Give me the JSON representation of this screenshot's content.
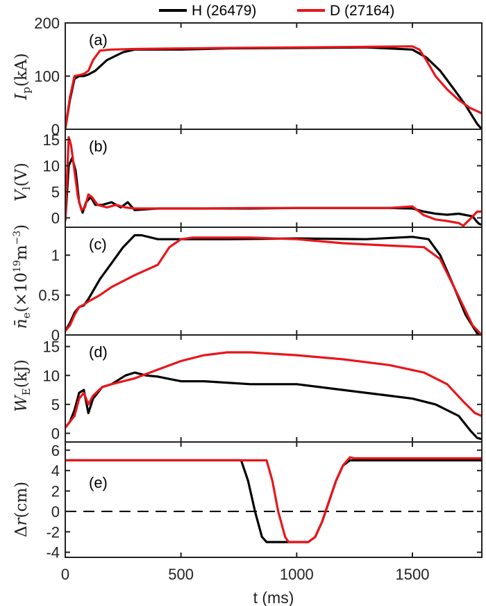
{
  "figure": {
    "xlabel": "t (ms)",
    "xlim": [
      0,
      1800
    ],
    "xticks": [
      0,
      500,
      1000,
      1500
    ]
  },
  "legend": [
    {
      "label": "H (26479)",
      "color": "#000000"
    },
    {
      "label": "D (27164)",
      "color": "#e8161b"
    }
  ],
  "chart_data": [
    {
      "type": "line",
      "panel": "(a)",
      "ylabel": "I_p(kA)",
      "ylim": [
        0,
        200
      ],
      "yticks": [
        0,
        100,
        200
      ],
      "series": [
        {
          "name": "H (26479)",
          "color": "#000000",
          "x": [
            0,
            20,
            40,
            60,
            80,
            100,
            130,
            180,
            250,
            300,
            500,
            700,
            1000,
            1300,
            1500,
            1560,
            1620,
            1680,
            1730,
            1780,
            1800
          ],
          "y": [
            0,
            55,
            95,
            100,
            100,
            103,
            110,
            130,
            145,
            150,
            150,
            152,
            153,
            154,
            150,
            135,
            110,
            75,
            45,
            10,
            0
          ]
        },
        {
          "name": "D (27164)",
          "color": "#e8161b",
          "x": [
            0,
            20,
            40,
            60,
            80,
            100,
            120,
            150,
            200,
            300,
            500,
            700,
            1000,
            1300,
            1500,
            1530,
            1560,
            1600,
            1650,
            1700,
            1750,
            1800
          ],
          "y": [
            0,
            60,
            100,
            102,
            104,
            110,
            130,
            148,
            150,
            151,
            152,
            153,
            154,
            155,
            156,
            150,
            130,
            100,
            75,
            55,
            40,
            30
          ]
        }
      ]
    },
    {
      "type": "line",
      "panel": "(b)",
      "ylabel": "V_l(V)",
      "ylim": [
        -1.8,
        17
      ],
      "yticks": [
        0,
        5,
        10,
        15
      ],
      "series": [
        {
          "name": "H (26479)",
          "color": "#000000",
          "x": [
            0,
            5,
            15,
            30,
            45,
            60,
            75,
            90,
            110,
            130,
            160,
            200,
            240,
            270,
            300,
            400,
            600,
            800,
            1000,
            1200,
            1400,
            1500,
            1550,
            1600,
            1650,
            1700,
            1760,
            1780,
            1790,
            1800
          ],
          "y": [
            -0.5,
            3,
            10,
            11.5,
            9,
            3,
            1,
            3,
            4,
            2.5,
            2.5,
            3,
            2,
            3,
            1.5,
            1.8,
            1.8,
            1.8,
            1.9,
            1.9,
            1.9,
            1.8,
            1.2,
            0.8,
            0.6,
            0.8,
            0.3,
            -0.8,
            -1.2,
            -1.3
          ]
        },
        {
          "name": "D (27164)",
          "color": "#e8161b",
          "x": [
            0,
            5,
            15,
            25,
            40,
            55,
            70,
            85,
            100,
            115,
            140,
            180,
            220,
            260,
            300,
            400,
            600,
            800,
            1000,
            1200,
            1400,
            1500,
            1550,
            1600,
            1650,
            1700,
            1720,
            1750,
            1780,
            1800
          ],
          "y": [
            -0.5,
            5,
            15.5,
            14,
            9,
            4,
            1.5,
            2,
            4.5,
            4,
            2.5,
            2,
            2.5,
            2,
            1.8,
            1.8,
            1.8,
            1.9,
            1.9,
            1.9,
            1.9,
            2.2,
            0.5,
            -0.3,
            -0.6,
            -1,
            -1.5,
            -0.2,
            1.2,
            1.2
          ]
        }
      ]
    },
    {
      "type": "line",
      "panel": "(c)",
      "ylabel": "n̄_e(×10^19 m^-3)",
      "ylim": [
        0,
        1.35
      ],
      "yticks": [
        0,
        0.5,
        1
      ],
      "series": [
        {
          "name": "H (26479)",
          "color": "#000000",
          "x": [
            0,
            20,
            40,
            60,
            80,
            100,
            150,
            200,
            250,
            300,
            330,
            400,
            500,
            700,
            1000,
            1300,
            1500,
            1570,
            1620,
            1680,
            1730,
            1780,
            1800
          ],
          "y": [
            0.05,
            0.15,
            0.28,
            0.35,
            0.37,
            0.45,
            0.7,
            0.9,
            1.1,
            1.25,
            1.25,
            1.2,
            1.2,
            1.2,
            1.21,
            1.2,
            1.23,
            1.2,
            1.0,
            0.6,
            0.25,
            0.02,
            0
          ]
        },
        {
          "name": "D (27164)",
          "color": "#e8161b",
          "x": [
            0,
            20,
            40,
            60,
            80,
            100,
            150,
            200,
            300,
            400,
            450,
            500,
            550,
            600,
            800,
            1000,
            1200,
            1400,
            1550,
            1620,
            1680,
            1730,
            1760,
            1800
          ],
          "y": [
            0.05,
            0.12,
            0.25,
            0.35,
            0.38,
            0.42,
            0.5,
            0.6,
            0.75,
            0.88,
            1.1,
            1.2,
            1.22,
            1.22,
            1.22,
            1.2,
            1.15,
            1.12,
            1.1,
            0.95,
            0.6,
            0.3,
            0.12,
            0
          ]
        }
      ]
    },
    {
      "type": "line",
      "panel": "(d)",
      "ylabel": "W_E(kJ)",
      "ylim": [
        -1.5,
        17
      ],
      "yticks": [
        0,
        5,
        10,
        15
      ],
      "series": [
        {
          "name": "H (26479)",
          "color": "#000000",
          "x": [
            0,
            20,
            40,
            60,
            80,
            100,
            120,
            160,
            200,
            260,
            300,
            350,
            400,
            500,
            600,
            800,
            1000,
            1200,
            1400,
            1500,
            1600,
            1700,
            1750,
            1780,
            1800
          ],
          "y": [
            1,
            2,
            4,
            7,
            7.5,
            3.5,
            6,
            8,
            8.5,
            10,
            10.5,
            10,
            9.8,
            9,
            9,
            8.5,
            8.5,
            7.5,
            6.5,
            6,
            5,
            3,
            0.5,
            -0.8,
            -1
          ]
        },
        {
          "name": "D (27164)",
          "color": "#e8161b",
          "x": [
            0,
            20,
            40,
            60,
            80,
            100,
            120,
            160,
            200,
            300,
            400,
            500,
            600,
            700,
            800,
            1000,
            1200,
            1400,
            1550,
            1650,
            1720,
            1770,
            1800
          ],
          "y": [
            1,
            2,
            3,
            6,
            7,
            5,
            6.5,
            8,
            8.5,
            9.5,
            11,
            12.5,
            13.5,
            14,
            14,
            13.5,
            12.8,
            11.8,
            10.5,
            8.5,
            5.5,
            3.5,
            3
          ]
        }
      ]
    },
    {
      "type": "line",
      "panel": "(e)",
      "ylabel": "Δr(cm)",
      "ylim": [
        -4.5,
        6.8
      ],
      "yticks": [
        -4,
        -2,
        0,
        2,
        4,
        6
      ],
      "reference_line": {
        "y": 0,
        "style": "dashed"
      },
      "series": [
        {
          "name": "H (26479)",
          "color": "#000000",
          "x": [
            0,
            760,
            790,
            820,
            850,
            870,
            1050,
            1080,
            1110,
            1140,
            1170,
            1200,
            1230,
            1250,
            1800
          ],
          "y": [
            5,
            5,
            3,
            0,
            -2.5,
            -3,
            -3,
            -2.5,
            -1,
            1,
            3,
            4.5,
            5,
            5,
            5
          ]
        },
        {
          "name": "D (27164)",
          "color": "#e8161b",
          "x": [
            0,
            870,
            895,
            920,
            950,
            965,
            1050,
            1080,
            1110,
            1140,
            1170,
            1200,
            1230,
            1250,
            1800
          ],
          "y": [
            5,
            5,
            3,
            0,
            -2.5,
            -3,
            -3,
            -2.5,
            -1,
            1,
            3,
            4.5,
            5.3,
            5.2,
            5.2
          ]
        }
      ]
    }
  ]
}
